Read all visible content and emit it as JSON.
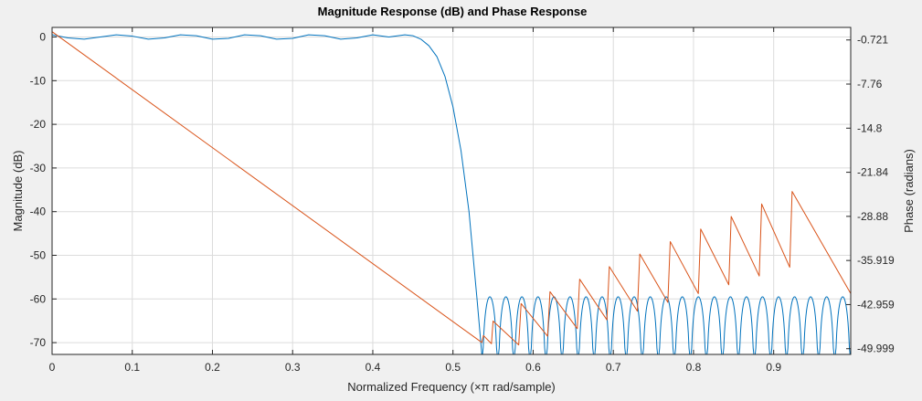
{
  "chart_data": {
    "type": "line",
    "title": "Magnitude Response (dB) and Phase Response",
    "xlabel": "Normalized Frequency (×π rad/sample)",
    "ylabel_left": "Magnitude (dB)",
    "ylabel_right": "Phase (radians)",
    "xlim": [
      0,
      0.9961
    ],
    "ylim_left": [
      -72.7,
      2.2
    ],
    "ylim_right": [
      -50.914,
      1.283
    ],
    "grid": true,
    "x_ticks": [
      "0",
      "0.1",
      "0.2",
      "0.3",
      "0.4",
      "0.5",
      "0.6",
      "0.7",
      "0.8",
      "0.9"
    ],
    "y_ticks_left": [
      "0",
      "-10",
      "-20",
      "-30",
      "-40",
      "-50",
      "-60",
      "-70"
    ],
    "y_ticks_right": [
      "-0.721",
      "-7.76",
      "-14.8",
      "-21.84",
      "-28.88",
      "-35.919",
      "-42.959",
      "-49.999"
    ],
    "series": [
      {
        "axis": "left",
        "color": "#0072bd",
        "passband_edge": 0.45,
        "stopband_edge": 0.536,
        "passband_ripple_db": 0.5,
        "stopband_peak_db": -59.5,
        "num_stopband_lobes": 23,
        "x": [
          0,
          0.02,
          0.04,
          0.06,
          0.08,
          0.1,
          0.12,
          0.14,
          0.16,
          0.18,
          0.2,
          0.22,
          0.24,
          0.26,
          0.28,
          0.3,
          0.32,
          0.34,
          0.36,
          0.38,
          0.4,
          0.42,
          0.44,
          0.45,
          0.46,
          0.47,
          0.48,
          0.49,
          0.5,
          0.51,
          0.52,
          0.53,
          0.536
        ],
        "values": [
          0.5,
          -0.2,
          -0.5,
          0.0,
          0.5,
          0.2,
          -0.5,
          -0.2,
          0.5,
          0.3,
          -0.5,
          -0.3,
          0.5,
          0.3,
          -0.5,
          -0.3,
          0.5,
          0.3,
          -0.5,
          -0.2,
          0.5,
          0.0,
          0.5,
          0.3,
          -0.5,
          -2.0,
          -4.5,
          -9.0,
          -16.0,
          -26.0,
          -40.0,
          -60.0,
          -72.7
        ]
      },
      {
        "axis": "right",
        "color": "#d95319",
        "x_start": 0,
        "y_start": 0.6,
        "linear_slope": -92.56,
        "stopband_wraps": [
          [
            0.536,
            -49.0
          ],
          [
            0.538,
            -47.9
          ],
          [
            0.548,
            -49.2
          ],
          [
            0.55,
            -45.6
          ],
          [
            0.582,
            -49.4
          ],
          [
            0.585,
            -42.8
          ],
          [
            0.618,
            -48.0
          ],
          [
            0.621,
            -40.9
          ],
          [
            0.655,
            -46.8
          ],
          [
            0.658,
            -38.9
          ],
          [
            0.692,
            -45.4
          ],
          [
            0.695,
            -36.9
          ],
          [
            0.73,
            -44.0
          ],
          [
            0.733,
            -34.9
          ],
          [
            0.768,
            -42.6
          ],
          [
            0.771,
            -32.9
          ],
          [
            0.806,
            -41.2
          ],
          [
            0.809,
            -30.9
          ],
          [
            0.844,
            -39.8
          ],
          [
            0.847,
            -28.9
          ],
          [
            0.882,
            -38.4
          ],
          [
            0.885,
            -26.9
          ],
          [
            0.92,
            -37.0
          ],
          [
            0.923,
            -24.9
          ],
          [
            0.9961,
            -41.2
          ]
        ]
      }
    ]
  }
}
